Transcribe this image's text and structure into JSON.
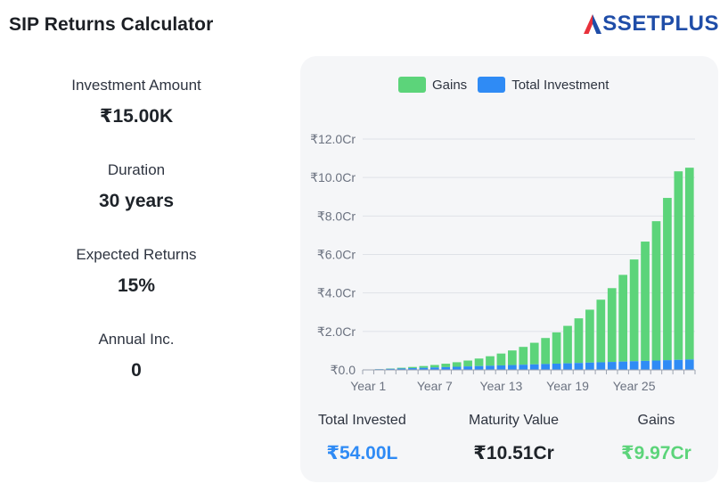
{
  "header": {
    "title": "SIP Returns Calculator",
    "brand": "SSETPLUS"
  },
  "inputs": [
    {
      "label": "Investment Amount",
      "value": "₹15.00K"
    },
    {
      "label": "Duration",
      "value": "30 years"
    },
    {
      "label": "Expected Returns",
      "value": "15%"
    },
    {
      "label": "Annual Inc.",
      "value": "0"
    }
  ],
  "summary": {
    "total_invested": {
      "label": "Total Invested",
      "value": "₹54.00L"
    },
    "maturity_value": {
      "label": "Maturity Value",
      "value": "₹10.51Cr"
    },
    "gains": {
      "label": "Gains",
      "value": "₹9.97Cr"
    }
  },
  "colors": {
    "gains": "#5cd47a",
    "investment": "#2f8bf5",
    "brand": "#1f4da8",
    "brand_accent": "#e8313b"
  },
  "chart_data": {
    "type": "bar",
    "stacked": true,
    "legend_position": "top",
    "grid": true,
    "ylim": [
      0,
      12
    ],
    "yticks": [
      {
        "value": 0,
        "label": "₹0.0"
      },
      {
        "value": 2,
        "label": "₹2.0Cr"
      },
      {
        "value": 4,
        "label": "₹4.0Cr"
      },
      {
        "value": 6,
        "label": "₹6.0Cr"
      },
      {
        "value": 8,
        "label": "₹8.0Cr"
      },
      {
        "value": 10,
        "label": "₹10.0Cr"
      },
      {
        "value": 12,
        "label": "₹12.0Cr"
      }
    ],
    "categories": [
      "Year 1",
      "Year 2",
      "Year 3",
      "Year 4",
      "Year 5",
      "Year 6",
      "Year 7",
      "Year 8",
      "Year 9",
      "Year 10",
      "Year 11",
      "Year 12",
      "Year 13",
      "Year 14",
      "Year 15",
      "Year 16",
      "Year 17",
      "Year 18",
      "Year 19",
      "Year 20",
      "Year 21",
      "Year 22",
      "Year 23",
      "Year 24",
      "Year 25",
      "Year 26",
      "Year 27",
      "Year 28",
      "Year 29",
      "Year 30"
    ],
    "xtick_labels": [
      "Year 1",
      "Year 7",
      "Year 13",
      "Year 19",
      "Year 25"
    ],
    "series": [
      {
        "name": "Total Investment",
        "color": "#2f8bf5",
        "values": [
          0.018,
          0.036,
          0.054,
          0.072,
          0.09,
          0.108,
          0.126,
          0.144,
          0.162,
          0.18,
          0.198,
          0.216,
          0.234,
          0.252,
          0.27,
          0.288,
          0.306,
          0.324,
          0.342,
          0.36,
          0.378,
          0.396,
          0.414,
          0.432,
          0.45,
          0.468,
          0.486,
          0.504,
          0.522,
          0.54
        ]
      },
      {
        "name": "Gains",
        "color": "#5cd47a",
        "values": [
          0.002,
          0.009,
          0.02,
          0.038,
          0.062,
          0.092,
          0.13,
          0.178,
          0.236,
          0.306,
          0.392,
          0.494,
          0.616,
          0.758,
          0.926,
          1.122,
          1.352,
          1.626,
          1.948,
          2.32,
          2.752,
          3.254,
          3.836,
          4.508,
          5.29,
          6.202,
          7.244,
          8.436,
          9.8,
          9.97
        ]
      }
    ]
  }
}
